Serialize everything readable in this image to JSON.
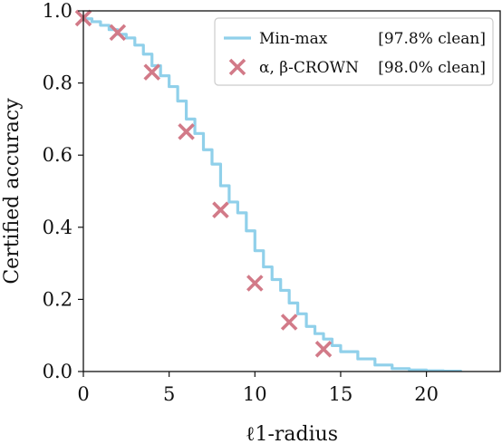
{
  "chart_data": {
    "type": "line",
    "xlabel": "ℓ1-radius",
    "ylabel": "Certified accuracy",
    "xlim": [
      0,
      24.3
    ],
    "ylim": [
      0,
      1.0
    ],
    "x_ticks": [
      0,
      5,
      10,
      15,
      20
    ],
    "y_ticks": [
      0.0,
      0.2,
      0.4,
      0.6,
      0.8,
      1.0
    ],
    "x_tick_labels": [
      "0",
      "5",
      "10",
      "15",
      "20"
    ],
    "y_tick_labels": [
      "0.0",
      "0.2",
      "0.4",
      "0.6",
      "0.8",
      "1.0"
    ],
    "grid": false,
    "legend_position": "top-right",
    "series": [
      {
        "name": "Min-max",
        "name_right": "[97.8% clean]",
        "style": "line",
        "color": "#90d0ea",
        "x": [
          0,
          0.5,
          1,
          1.5,
          2,
          2.5,
          3,
          3.5,
          4,
          4.5,
          5,
          5.5,
          6,
          6.5,
          7,
          7.5,
          8,
          8.5,
          9,
          9.5,
          10,
          10.5,
          11,
          11.5,
          12,
          12.5,
          13,
          13.5,
          14,
          14.5,
          15,
          16,
          17,
          18,
          19,
          20,
          21,
          22
        ],
        "y": [
          0.978,
          0.97,
          0.96,
          0.948,
          0.935,
          0.925,
          0.905,
          0.88,
          0.848,
          0.82,
          0.79,
          0.75,
          0.7,
          0.66,
          0.615,
          0.575,
          0.515,
          0.47,
          0.44,
          0.39,
          0.335,
          0.29,
          0.255,
          0.225,
          0.19,
          0.16,
          0.125,
          0.105,
          0.09,
          0.072,
          0.055,
          0.035,
          0.018,
          0.008,
          0.004,
          0.002,
          0.001,
          0.0
        ]
      },
      {
        "name": "α, β-CROWN",
        "name_right": "[98.0% clean]",
        "style": "marker-x",
        "color": "#d27a88",
        "x": [
          0,
          2,
          4,
          6,
          8,
          10,
          12,
          14
        ],
        "y": [
          0.98,
          0.94,
          0.83,
          0.665,
          0.448,
          0.245,
          0.137,
          0.062
        ]
      }
    ]
  }
}
